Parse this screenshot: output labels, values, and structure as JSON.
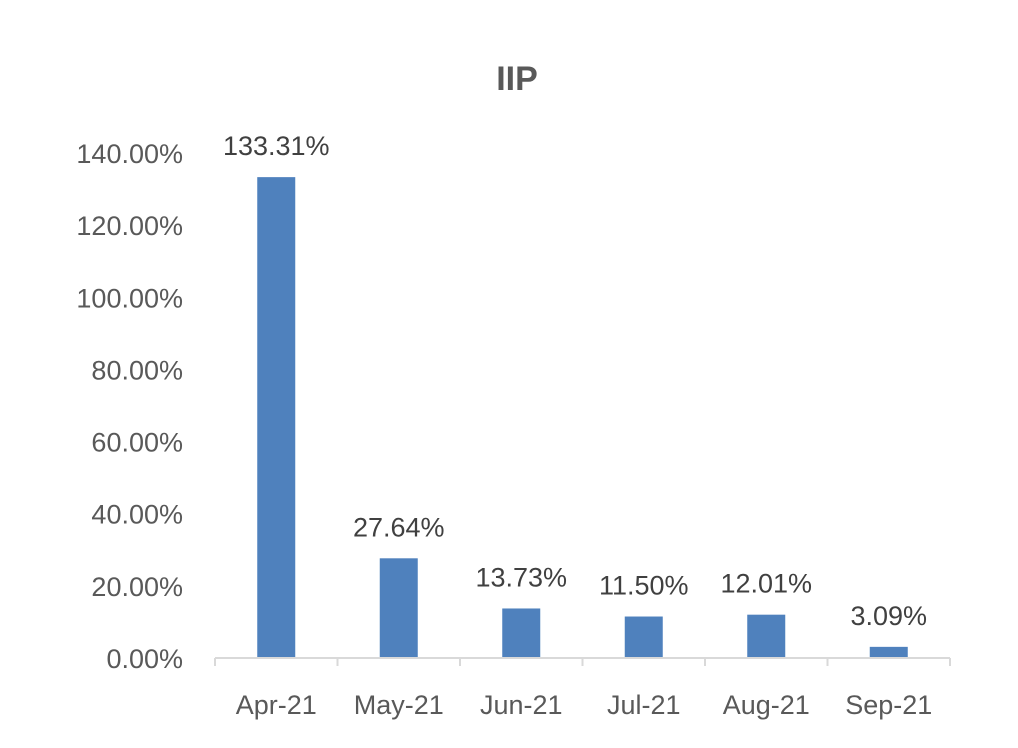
{
  "chart_data": {
    "type": "bar",
    "title": "IIP",
    "categories": [
      "Apr-21",
      "May-21",
      "Jun-21",
      "Jul-21",
      "Aug-21",
      "Sep-21"
    ],
    "values": [
      133.31,
      27.64,
      13.73,
      11.5,
      12.01,
      3.09
    ],
    "data_labels": [
      "133.31%",
      "27.64%",
      "13.73%",
      "11.50%",
      "12.01%",
      "3.09%"
    ],
    "y_ticks": [
      "0.00%",
      "20.00%",
      "40.00%",
      "60.00%",
      "80.00%",
      "100.00%",
      "120.00%",
      "140.00%"
    ],
    "ylim": [
      0,
      140
    ],
    "grid": false,
    "legend": "none",
    "bar_color": "#4f81bd",
    "axis_color": "#d9d9d9"
  }
}
